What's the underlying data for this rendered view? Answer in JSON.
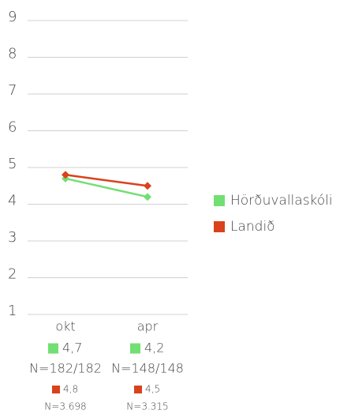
{
  "chart_data": {
    "type": "line",
    "categories": [
      "okt",
      "apr"
    ],
    "series": [
      {
        "name": "Hörðuvallaskóli",
        "color": "#72df72",
        "values": [
          4.7,
          4.2
        ],
        "value_labels": [
          "4,7",
          "4,2"
        ],
        "n_labels": [
          "N=182/182",
          "N=148/148"
        ]
      },
      {
        "name": "Landið",
        "color": "#d9421c",
        "values": [
          4.8,
          4.5
        ],
        "value_labels": [
          "4,8",
          "4,5"
        ],
        "n_labels": [
          "N=3.698",
          "N=3.315"
        ]
      }
    ],
    "ylim": [
      1,
      9
    ],
    "yticks": [
      1,
      2,
      3,
      4,
      5,
      6,
      7,
      8,
      9
    ],
    "grid": true,
    "legend": "right"
  }
}
